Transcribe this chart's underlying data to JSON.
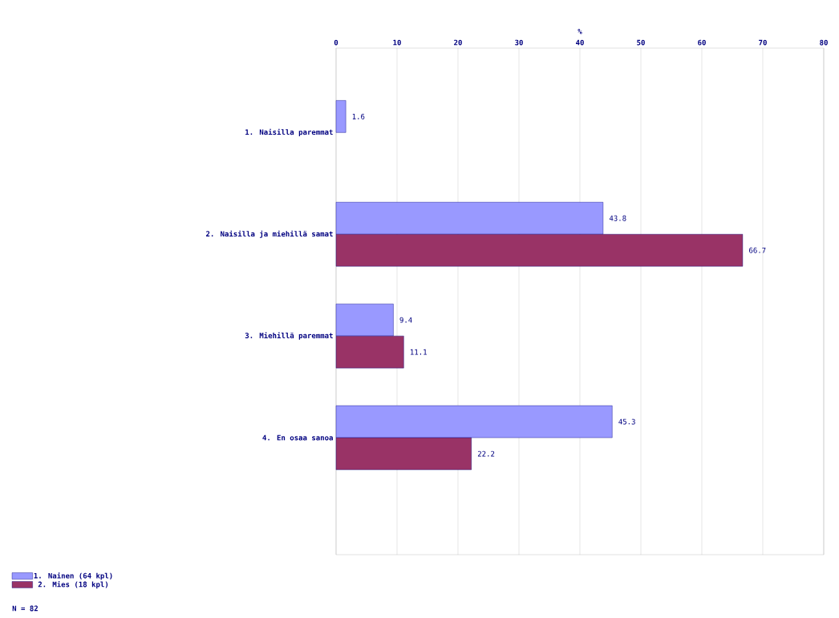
{
  "chart_data": {
    "type": "bar",
    "orientation": "horizontal",
    "xlabel": "%",
    "categories": [
      "1. Naisilla paremmat",
      "2. Naisilla ja miehillä samat",
      "3. Miehillä paremmat",
      "4. En osaa sanoa"
    ],
    "series": [
      {
        "name": "1. Nainen  (64 kpl)",
        "color": "#9999ff",
        "values": [
          1.6,
          43.8,
          9.4,
          45.3
        ]
      },
      {
        "name": "2. Mies  (18 kpl)",
        "color": "#993366",
        "values": [
          null,
          66.7,
          11.1,
          22.2
        ]
      }
    ],
    "xlim": [
      0,
      80
    ],
    "xticks": [
      0,
      10,
      20,
      30,
      40,
      50,
      60,
      70,
      80
    ],
    "grid": "x",
    "legend": "bottom left",
    "data_labels": true,
    "annotations": [
      "N = 82"
    ]
  }
}
